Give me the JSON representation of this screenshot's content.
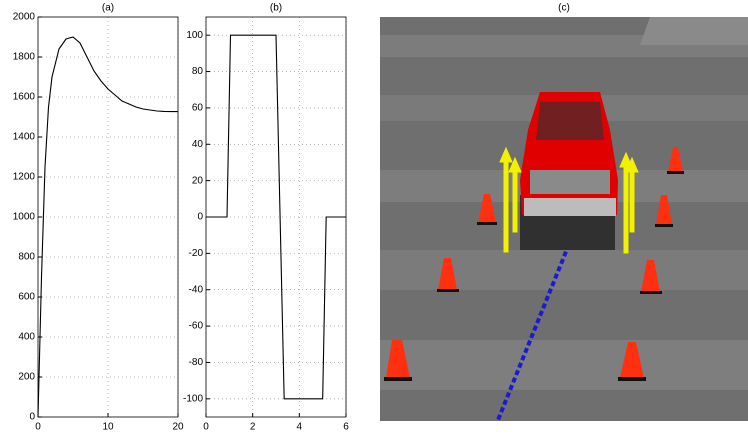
{
  "chart_data": [
    {
      "type": "line",
      "title": "(a)",
      "x": [
        0,
        0.5,
        1,
        1.5,
        2,
        3,
        4,
        5,
        6,
        7,
        8,
        9,
        10,
        11,
        12,
        13,
        14,
        15,
        16,
        17,
        18,
        19,
        20
      ],
      "values": [
        0,
        700,
        1250,
        1550,
        1700,
        1840,
        1890,
        1900,
        1870,
        1800,
        1730,
        1680,
        1640,
        1610,
        1580,
        1565,
        1550,
        1540,
        1535,
        1530,
        1528,
        1527,
        1527
      ],
      "color": "#000000",
      "xlim": [
        0,
        20
      ],
      "ylim": [
        0,
        2000
      ],
      "xticks": [
        0,
        10,
        20
      ],
      "yticks": [
        0,
        200,
        400,
        600,
        800,
        1000,
        1200,
        1400,
        1600,
        1800,
        2000
      ],
      "grid": true
    },
    {
      "type": "line",
      "title": "(b)",
      "x": [
        0,
        0.9,
        1.05,
        3.0,
        3.35,
        5.0,
        5.15,
        6
      ],
      "values": [
        0,
        0,
        100,
        100,
        -100,
        -100,
        0,
        0
      ],
      "color": "#000000",
      "xlim": [
        0,
        6
      ],
      "ylim": [
        -110,
        110
      ],
      "xticks": [
        0,
        2,
        4,
        6
      ],
      "yticks": [
        -100,
        -80,
        -60,
        -40,
        -20,
        0,
        20,
        40,
        60,
        80,
        100
      ],
      "grid": true
    },
    {
      "type": "image",
      "title": "(c)"
    }
  ]
}
